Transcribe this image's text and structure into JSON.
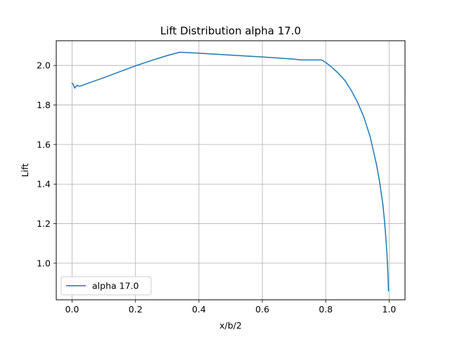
{
  "chart_data": {
    "type": "line",
    "title": "Lift Distribution alpha 17.0",
    "xlabel": "x/b/2",
    "ylabel": "Lift",
    "xlim": [
      -0.05,
      1.05
    ],
    "ylim": [
      0.815,
      2.125
    ],
    "xticks": [
      0.0,
      0.2,
      0.4,
      0.6,
      0.8,
      1.0
    ],
    "xtick_labels": [
      "0.0",
      "0.2",
      "0.4",
      "0.6",
      "0.8",
      "1.0"
    ],
    "yticks": [
      1.0,
      1.2,
      1.4,
      1.6,
      1.8,
      2.0
    ],
    "ytick_labels": [
      "1.0",
      "1.2",
      "1.4",
      "1.6",
      "1.8",
      "2.0"
    ],
    "grid": true,
    "legend_position": "lower-left",
    "series": [
      {
        "name": "alpha 17.0",
        "color": "#1f77b4",
        "x": [
          0.0,
          0.004,
          0.008,
          0.012,
          0.016,
          0.02,
          0.025,
          0.05,
          0.1,
          0.15,
          0.2,
          0.25,
          0.3,
          0.34,
          0.4,
          0.5,
          0.6,
          0.7,
          0.72,
          0.76,
          0.785,
          0.79,
          0.8,
          0.82,
          0.84,
          0.86,
          0.88,
          0.9,
          0.92,
          0.94,
          0.96,
          0.97,
          0.98,
          0.985,
          0.99,
          0.993,
          0.996,
          0.998
        ],
        "y": [
          1.91,
          1.903,
          1.885,
          1.894,
          1.9,
          1.896,
          1.895,
          1.91,
          1.938,
          1.968,
          1.998,
          2.025,
          2.05,
          2.067,
          2.062,
          2.052,
          2.043,
          2.032,
          2.028,
          2.028,
          2.028,
          2.025,
          2.015,
          1.99,
          1.96,
          1.925,
          1.875,
          1.815,
          1.74,
          1.64,
          1.5,
          1.41,
          1.3,
          1.22,
          1.12,
          1.05,
          0.95,
          0.86
        ]
      }
    ]
  }
}
